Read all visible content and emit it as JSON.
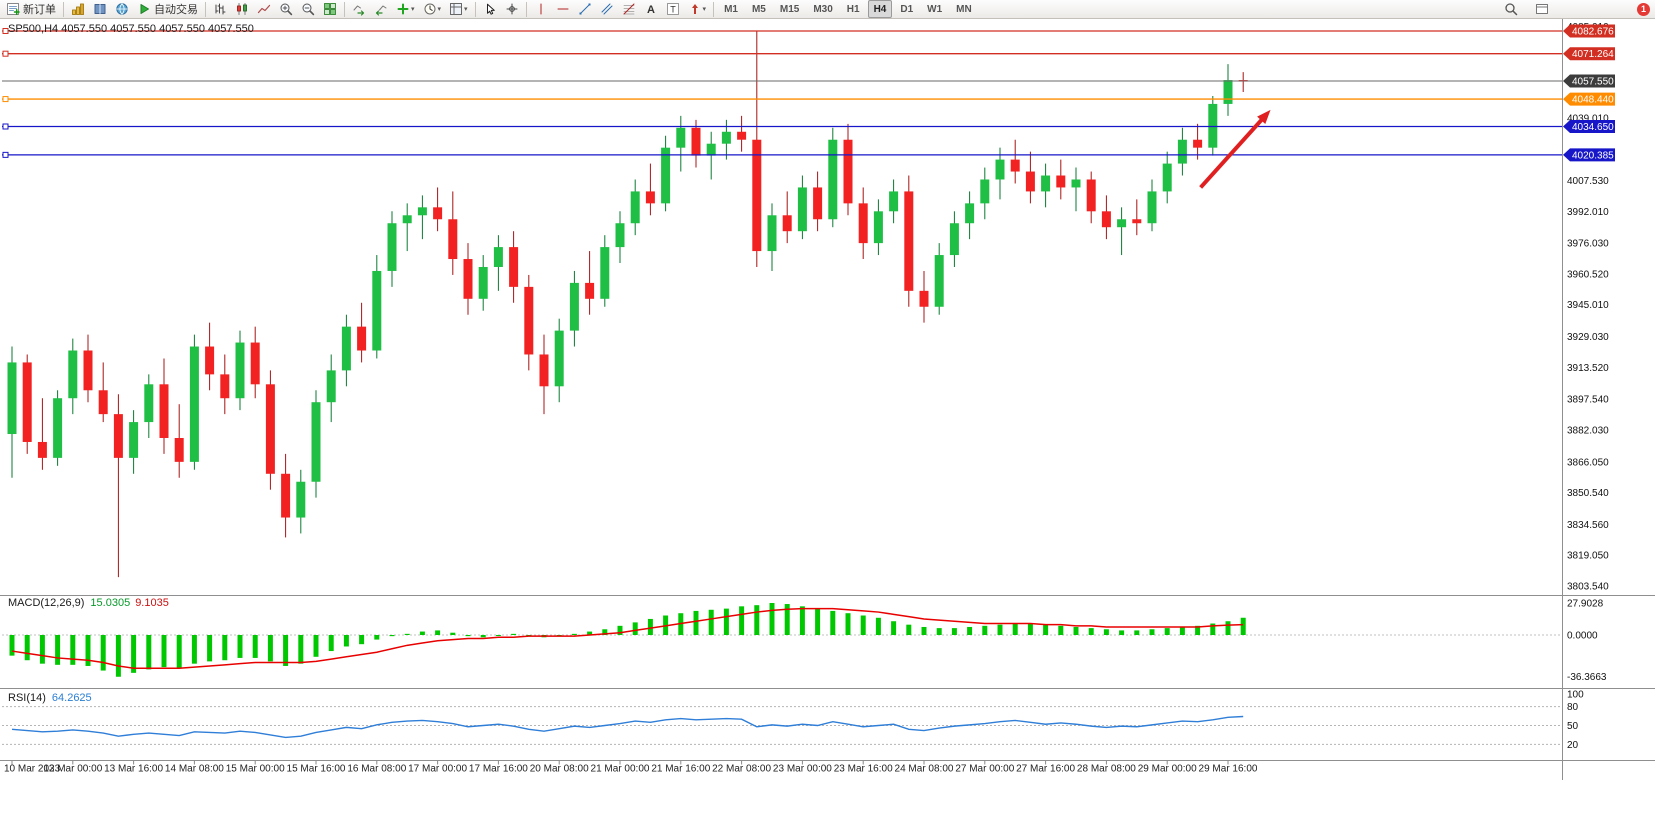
{
  "toolbar": {
    "left_items": [
      {
        "type": "button",
        "name": "new-order-button",
        "icon": "new-order",
        "label": "新订单"
      },
      {
        "type": "sep"
      },
      {
        "type": "button",
        "name": "charts-button",
        "icon": "chart-gold"
      },
      {
        "type": "button",
        "name": "market-watch-button",
        "icon": "book-blue"
      },
      {
        "type": "button",
        "name": "navigator-button",
        "icon": "globe"
      },
      {
        "type": "button",
        "name": "autotrading-button",
        "icon": "play-green",
        "label": "自动交易"
      },
      {
        "type": "sep"
      },
      {
        "type": "button",
        "name": "bar-chart-button",
        "icon": "bars"
      },
      {
        "type": "button",
        "name": "candlestick-chart-button",
        "icon": "candles"
      },
      {
        "type": "button",
        "name": "line-chart-button",
        "icon": "linechart"
      },
      {
        "type": "button",
        "name": "zoom-in-button",
        "icon": "zoom-in"
      },
      {
        "type": "button",
        "name": "zoom-out-button",
        "icon": "zoom-out"
      },
      {
        "type": "button",
        "name": "tile-windows-button",
        "icon": "tiles"
      },
      {
        "type": "sep"
      },
      {
        "type": "button",
        "name": "auto-scroll-button",
        "icon": "autoscroll"
      },
      {
        "type": "button",
        "name": "chart-shift-button",
        "icon": "chartshift"
      },
      {
        "type": "button",
        "name": "indicators-button",
        "icon": "plus-green",
        "dropdown": true
      },
      {
        "type": "button",
        "name": "periods-button",
        "icon": "clock",
        "dropdown": true
      },
      {
        "type": "button",
        "name": "templates-button",
        "icon": "template",
        "dropdown": true
      },
      {
        "type": "sep"
      },
      {
        "type": "button",
        "name": "cursor-button",
        "icon": "cursor"
      },
      {
        "type": "button",
        "name": "crosshair-button",
        "icon": "crosshair"
      },
      {
        "type": "sep"
      },
      {
        "type": "button",
        "name": "vertical-line-button",
        "icon": "vline"
      },
      {
        "type": "button",
        "name": "horizontal-line-button",
        "icon": "hline"
      },
      {
        "type": "button",
        "name": "trendline-button",
        "icon": "trendline"
      },
      {
        "type": "button",
        "name": "equidistant-channel-button",
        "icon": "channel"
      },
      {
        "type": "button",
        "name": "fibonacci-button",
        "icon": "fibo"
      },
      {
        "type": "button",
        "name": "text-button",
        "icon": "textA"
      },
      {
        "type": "button",
        "name": "text-label-button",
        "icon": "textT"
      },
      {
        "type": "button",
        "name": "arrows-button",
        "icon": "arrowobj",
        "dropdown": true
      },
      {
        "type": "sep"
      }
    ],
    "timeframes": [
      {
        "label": "M1"
      },
      {
        "label": "M5"
      },
      {
        "label": "M15"
      },
      {
        "label": "M30"
      },
      {
        "label": "H1"
      },
      {
        "label": "H4",
        "active": true
      },
      {
        "label": "D1"
      },
      {
        "label": "W1"
      },
      {
        "label": "MN"
      }
    ],
    "right_items": [
      {
        "type": "button",
        "name": "search-button",
        "icon": "search"
      },
      {
        "type": "button",
        "name": "toggle-panel-button",
        "icon": "panel"
      },
      {
        "type": "badge",
        "name": "notification-badge",
        "label": "1",
        "color": "#e53935"
      }
    ]
  },
  "chart": {
    "title": "SP500,H4 4057.550 4057.550 4057.550 4057.550",
    "current_price": "4057.550",
    "price_lines": [
      {
        "label": "4082.676",
        "price": 4082.676,
        "color": "#d22f22",
        "tag_bg": "#d22f22"
      },
      {
        "label": "4071.264",
        "price": 4071.264,
        "color": "#d22f22",
        "tag_bg": "#d22f22"
      },
      {
        "label": "4057.550",
        "price": 4057.55,
        "color": "#6a6a6a",
        "tag_bg": "#3c3c3c",
        "current": true
      },
      {
        "label": "4048.440",
        "price": 4048.44,
        "color": "#ff8c00",
        "tag_bg": "#ff8c00"
      },
      {
        "label": "4034.650",
        "price": 4034.65,
        "color": "#1717c9",
        "tag_bg": "#1717c9"
      },
      {
        "label": "4020.385",
        "price": 4020.385,
        "color": "#1717c9",
        "tag_bg": "#1717c9"
      }
    ],
    "price_axis_labels": [
      "4085.010",
      "4039.010",
      "4007.530",
      "3992.010",
      "3976.030",
      "3960.520",
      "3945.010",
      "3929.030",
      "3913.520",
      "3897.540",
      "3882.030",
      "3866.050",
      "3850.540",
      "3834.560",
      "3819.050",
      "3803.540"
    ],
    "annotations": [
      {
        "type": "arrow",
        "from_bar": 78.2,
        "from_price": 4004,
        "to_bar": 82.8,
        "to_price": 4043,
        "color": "#e02020",
        "width": 4
      }
    ]
  },
  "indicators": {
    "macd": {
      "name": "MACD(12,26,9)",
      "value": "15.0305",
      "signal": "9.1035"
    },
    "rsi": {
      "name": "RSI(14)",
      "value": "64.2625"
    }
  },
  "chart_data": [
    {
      "type": "candlestick",
      "symbol": "SP500",
      "timeframe": "H4",
      "title": "SP500,H4 4057.550 4057.550 4057.550 4057.550",
      "ylim": [
        3800,
        4090
      ],
      "up_color": "#1fbf45",
      "down_color": "#f22222",
      "x_label_step_bars": 4,
      "x_labels": [
        "10 Mar 2023",
        "13 Mar 00:00",
        "13 Mar 16:00",
        "14 Mar 08:00",
        "15 Mar 00:00",
        "15 Mar 16:00",
        "16 Mar 08:00",
        "17 Mar 00:00",
        "17 Mar 16:00",
        "20 Mar 08:00",
        "21 Mar 00:00",
        "21 Mar 16:00",
        "22 Mar 08:00",
        "23 Mar 00:00",
        "23 Mar 16:00",
        "24 Mar 08:00",
        "27 Mar 00:00",
        "27 Mar 16:00",
        "28 Mar 08:00",
        "29 Mar 00:00",
        "29 Mar 16:00"
      ],
      "ohlc": [
        [
          3880,
          3924,
          3858,
          3916
        ],
        [
          3916,
          3920,
          3870,
          3876
        ],
        [
          3876,
          3898,
          3862,
          3868
        ],
        [
          3868,
          3902,
          3864,
          3898
        ],
        [
          3898,
          3928,
          3890,
          3922
        ],
        [
          3922,
          3930,
          3896,
          3902
        ],
        [
          3902,
          3916,
          3886,
          3890
        ],
        [
          3890,
          3900,
          3808,
          3868
        ],
        [
          3868,
          3892,
          3860,
          3886
        ],
        [
          3886,
          3910,
          3878,
          3905
        ],
        [
          3905,
          3918,
          3870,
          3878
        ],
        [
          3878,
          3895,
          3858,
          3866
        ],
        [
          3866,
          3930,
          3862,
          3924
        ],
        [
          3924,
          3936,
          3902,
          3910
        ],
        [
          3910,
          3920,
          3890,
          3898
        ],
        [
          3898,
          3932,
          3892,
          3926
        ],
        [
          3926,
          3934,
          3898,
          3905
        ],
        [
          3905,
          3912,
          3852,
          3860
        ],
        [
          3860,
          3870,
          3828,
          3838
        ],
        [
          3838,
          3862,
          3830,
          3856
        ],
        [
          3856,
          3902,
          3848,
          3896
        ],
        [
          3896,
          3920,
          3886,
          3912
        ],
        [
          3912,
          3940,
          3904,
          3934
        ],
        [
          3934,
          3946,
          3916,
          3922
        ],
        [
          3922,
          3970,
          3918,
          3962
        ],
        [
          3962,
          3992,
          3954,
          3986
        ],
        [
          3986,
          3996,
          3972,
          3990
        ],
        [
          3990,
          4000,
          3978,
          3994
        ],
        [
          3994,
          4004,
          3982,
          3988
        ],
        [
          3988,
          4002,
          3960,
          3968
        ],
        [
          3968,
          3976,
          3940,
          3948
        ],
        [
          3948,
          3970,
          3942,
          3964
        ],
        [
          3964,
          3980,
          3952,
          3974
        ],
        [
          3974,
          3982,
          3946,
          3954
        ],
        [
          3954,
          3960,
          3912,
          3920
        ],
        [
          3920,
          3930,
          3890,
          3904
        ],
        [
          3904,
          3938,
          3896,
          3932
        ],
        [
          3932,
          3962,
          3924,
          3956
        ],
        [
          3956,
          3972,
          3940,
          3948
        ],
        [
          3948,
          3980,
          3944,
          3974
        ],
        [
          3974,
          3992,
          3966,
          3986
        ],
        [
          3986,
          4008,
          3980,
          4002
        ],
        [
          4002,
          4016,
          3990,
          3996
        ],
        [
          3996,
          4030,
          3992,
          4024
        ],
        [
          4024,
          4040,
          4012,
          4034
        ],
        [
          4034,
          4038,
          4014,
          4020
        ],
        [
          4020,
          4032,
          4008,
          4026
        ],
        [
          4026,
          4038,
          4018,
          4032
        ],
        [
          4032,
          4040,
          4022,
          4028
        ],
        [
          4028,
          4082.7,
          3964,
          3972
        ],
        [
          3972,
          3996,
          3962,
          3990
        ],
        [
          3990,
          4002,
          3976,
          3982
        ],
        [
          3982,
          4010,
          3978,
          4004
        ],
        [
          4004,
          4012,
          3982,
          3988
        ],
        [
          3988,
          4034,
          3984,
          4028
        ],
        [
          4028,
          4036,
          3990,
          3996
        ],
        [
          3996,
          4004,
          3968,
          3976
        ],
        [
          3976,
          3998,
          3970,
          3992
        ],
        [
          3992,
          4008,
          3986,
          4002
        ],
        [
          4002,
          4010,
          3944,
          3952
        ],
        [
          3952,
          3962,
          3936,
          3944
        ],
        [
          3944,
          3976,
          3940,
          3970
        ],
        [
          3970,
          3992,
          3964,
          3986
        ],
        [
          3986,
          4002,
          3978,
          3996
        ],
        [
          3996,
          4014,
          3988,
          4008
        ],
        [
          4008,
          4024,
          3998,
          4018
        ],
        [
          4018,
          4028,
          4006,
          4012
        ],
        [
          4012,
          4022,
          3996,
          4002
        ],
        [
          4002,
          4016,
          3994,
          4010
        ],
        [
          4010,
          4018,
          3998,
          4004
        ],
        [
          4004,
          4014,
          3992,
          4008
        ],
        [
          4008,
          4012,
          3986,
          3992
        ],
        [
          3992,
          4000,
          3978,
          3984
        ],
        [
          3984,
          3994,
          3970,
          3988
        ],
        [
          3988,
          3998,
          3980,
          3986
        ],
        [
          3986,
          4008,
          3982,
          4002
        ],
        [
          4002,
          4022,
          3996,
          4016
        ],
        [
          4016,
          4034,
          4010,
          4028
        ],
        [
          4028,
          4036,
          4018,
          4024
        ],
        [
          4024,
          4050,
          4020,
          4046
        ],
        [
          4046,
          4066,
          4040,
          4058
        ],
        [
          4058,
          4062,
          4052,
          4057.6
        ]
      ]
    },
    {
      "type": "bar",
      "name": "MACD(12,26,9)",
      "current_value": 15.0305,
      "current_signal": 9.1035,
      "axis_labels": [
        "27.9028",
        "0.0000",
        "-36.3663"
      ],
      "ylim": [
        -36.3663,
        27.9028
      ],
      "bar_color": "#00c800",
      "signal_color": "#e80000",
      "values": [
        -18,
        -22,
        -25,
        -26,
        -26,
        -27,
        -31,
        -36.4,
        -33,
        -30,
        -28,
        -29,
        -25,
        -23,
        -22,
        -20,
        -20,
        -23,
        -27,
        -25,
        -19,
        -14,
        -10,
        -8,
        -4,
        -1,
        1,
        3,
        4,
        2,
        -1,
        -2,
        0,
        1,
        0,
        -2,
        -1,
        1,
        3,
        5,
        8,
        11,
        14,
        17,
        19,
        21,
        22,
        23,
        25,
        26,
        27.9,
        27,
        25,
        23,
        21,
        19,
        17,
        15,
        12,
        9,
        7,
        6,
        6,
        7,
        8,
        9,
        10,
        10,
        9,
        8,
        7,
        6,
        5,
        4,
        4,
        5,
        6,
        7,
        8,
        10,
        12,
        15.03
      ],
      "signal": [
        -14,
        -16,
        -18,
        -20,
        -21,
        -22,
        -24,
        -27,
        -29,
        -29,
        -29,
        -29,
        -28,
        -27,
        -26,
        -25,
        -24,
        -24,
        -24,
        -24,
        -23,
        -21,
        -19,
        -17,
        -15,
        -12,
        -9,
        -7,
        -5,
        -4,
        -3,
        -3,
        -2,
        -2,
        -1,
        -1,
        -1,
        -1,
        0,
        1,
        2,
        4,
        6,
        8,
        10,
        12,
        14,
        16,
        18,
        20,
        21.5,
        22.5,
        23,
        23,
        23,
        22,
        21,
        20,
        18,
        16,
        14,
        13,
        12,
        11,
        10,
        10,
        10,
        10,
        9,
        9,
        8,
        8,
        7,
        7,
        7,
        7,
        7,
        7,
        7,
        8,
        8.6,
        9.1
      ]
    },
    {
      "type": "line",
      "name": "RSI(14)",
      "current_value": 64.2625,
      "axis_labels": [
        "100",
        "80",
        "50",
        "20"
      ],
      "levels": [
        80,
        50,
        20
      ],
      "ylim": [
        0,
        100
      ],
      "line_color": "#2f7ed8",
      "values": [
        44,
        42,
        40,
        41,
        43,
        41,
        38,
        33,
        36,
        38,
        36,
        34,
        40,
        39,
        38,
        41,
        39,
        35,
        31,
        33,
        39,
        43,
        47,
        45,
        51,
        55,
        57,
        58,
        56,
        53,
        48,
        50,
        52,
        49,
        44,
        41,
        45,
        49,
        47,
        50,
        53,
        57,
        55,
        59,
        61,
        59,
        60,
        61,
        60,
        48,
        51,
        49,
        52,
        50,
        56,
        52,
        48,
        50,
        52,
        44,
        42,
        46,
        49,
        51,
        53,
        56,
        58,
        55,
        52,
        54,
        52,
        49,
        47,
        49,
        48,
        51,
        54,
        57,
        56,
        59,
        63,
        64.3
      ]
    }
  ]
}
